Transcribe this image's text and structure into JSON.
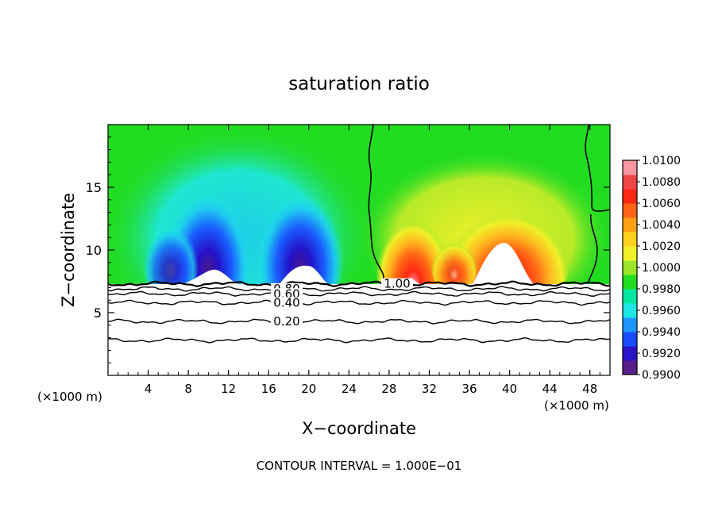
{
  "chart_data": {
    "type": "heatmap",
    "title": "saturation ratio",
    "xlabel": "X−coordinate",
    "ylabel": "Z−coordinate",
    "x_unit_left": "(×1000 m)",
    "x_unit_right": "(×1000 m)",
    "footer": "CONTOUR INTERVAL = 1.000E−01",
    "xlim": [
      0,
      50
    ],
    "ylim": [
      0,
      20
    ],
    "x_ticks": [
      4,
      8,
      12,
      16,
      20,
      24,
      28,
      32,
      36,
      40,
      44,
      48
    ],
    "x_tick_labels": [
      "4",
      "8",
      "12",
      "16",
      "20",
      "24",
      "28",
      "32",
      "36",
      "40",
      "44",
      "48"
    ],
    "y_ticks": [
      5,
      10,
      15
    ],
    "y_tick_labels": [
      "5",
      "10",
      "15"
    ],
    "colorbar": {
      "min": 0.99,
      "max": 1.01,
      "labels": [
        "1.0100",
        "1.0080",
        "1.0060",
        "1.0040",
        "1.0020",
        "1.0000",
        "0.9980",
        "0.9960",
        "0.9940",
        "0.9920",
        "0.9900"
      ],
      "label_values": [
        1.01,
        1.008,
        1.006,
        1.004,
        1.002,
        1.0,
        0.998,
        0.996,
        0.994,
        0.992,
        0.99
      ],
      "colors": [
        "#5a1e8c",
        "#2a14c8",
        "#1a4cff",
        "#1e96ff",
        "#1ee6e6",
        "#00e6a0",
        "#22dc22",
        "#9be628",
        "#f0f028",
        "#ffd21e",
        "#ffa014",
        "#ff6414",
        "#ff2814",
        "#f04646",
        "#fa96a0"
      ]
    },
    "contour_lines": [
      {
        "label": "1.00",
        "z": 7.3,
        "label_x": 28.8
      },
      {
        "label": "0.80",
        "z": 6.9,
        "label_x": 17.8
      },
      {
        "label": "0.60",
        "z": 6.5,
        "label_x": 17.8
      },
      {
        "label": "0.40",
        "z": 5.8,
        "label_x": 17.8
      },
      {
        "label": "0.20",
        "z": 4.3,
        "label_x": 17.8
      },
      {
        "label": "",
        "z": 2.8,
        "label_x": null
      }
    ],
    "cloud_base_z": 7.3,
    "boundary_x": 26.5
  }
}
